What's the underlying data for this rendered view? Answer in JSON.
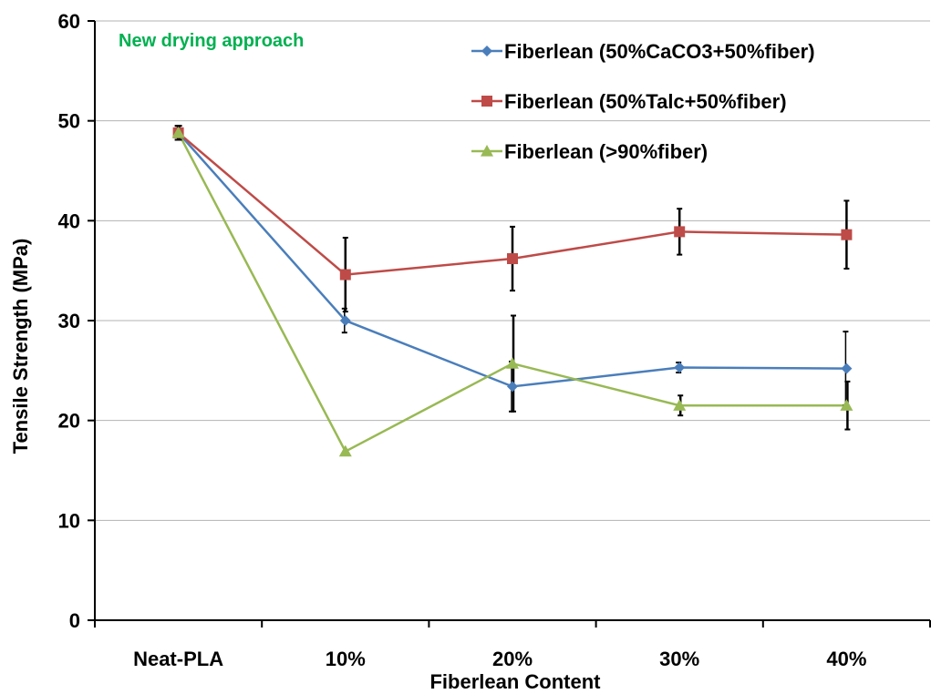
{
  "chart_data": {
    "type": "line",
    "title": "",
    "annotation": "New drying approach",
    "xlabel": "Fiberlean Content",
    "ylabel": "Tensile Strength (MPa)",
    "categories": [
      "Neat-PLA",
      "10%",
      "20%",
      "30%",
      "40%"
    ],
    "ylim": [
      0,
      60
    ],
    "yticks": [
      0,
      10,
      20,
      30,
      40,
      50,
      60
    ],
    "grid": true,
    "legend_position": "top-right",
    "series": [
      {
        "name": "Fiberlean (50%CaCO3+50%fiber)",
        "color": "#4a7ebb",
        "marker": "diamond",
        "values": [
          48.8,
          30.0,
          23.4,
          25.3,
          25.2
        ],
        "errors": [
          0.7,
          1.2,
          2.5,
          0.5,
          3.7
        ]
      },
      {
        "name": "Fiberlean (50%Talc+50%fiber)",
        "color": "#be4b48",
        "marker": "square",
        "values": [
          48.8,
          34.6,
          36.2,
          38.9,
          38.6
        ],
        "errors": [
          0.7,
          3.7,
          3.2,
          2.3,
          3.4
        ]
      },
      {
        "name": "Fiberlean (>90%fiber)",
        "color": "#98b954",
        "marker": "triangle",
        "values": [
          48.8,
          16.9,
          25.7,
          21.5,
          21.5
        ],
        "errors": [
          0.7,
          0,
          4.8,
          1.0,
          2.4
        ]
      }
    ],
    "colors": {
      "annotation": "#00b050",
      "grid": "#b3b3b3",
      "axis": "#000000",
      "errorbar": "#000000"
    }
  }
}
